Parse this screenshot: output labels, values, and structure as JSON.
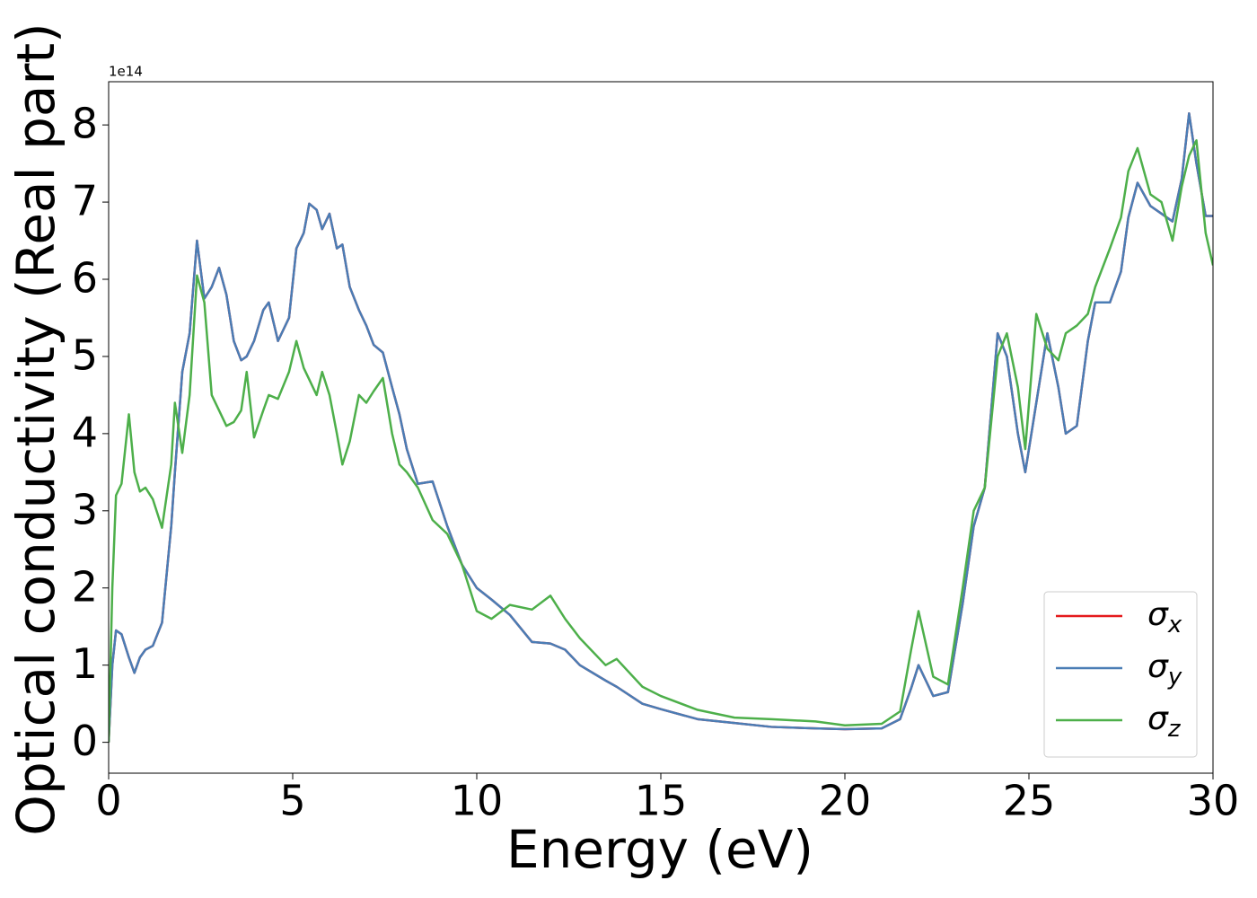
{
  "chart_data": {
    "type": "line",
    "xlabel": "Energy (eV)",
    "ylabel": "Optical conductivity (Real part)",
    "y_offset_label": "1e14",
    "x": [
      0,
      0.1,
      0.2,
      0.35,
      0.55,
      0.7,
      0.85,
      1.0,
      1.2,
      1.45,
      1.7,
      1.8,
      2.0,
      2.2,
      2.4,
      2.6,
      2.8,
      3.0,
      3.2,
      3.4,
      3.6,
      3.75,
      3.95,
      4.2,
      4.35,
      4.6,
      4.9,
      5.1,
      5.3,
      5.45,
      5.65,
      5.8,
      6.0,
      6.2,
      6.35,
      6.55,
      6.8,
      7.0,
      7.2,
      7.45,
      7.7,
      7.9,
      8.1,
      8.4,
      8.8,
      9.2,
      9.6,
      10.0,
      10.4,
      10.9,
      11.5,
      12.0,
      12.4,
      12.8,
      13.5,
      13.8,
      14.5,
      15.0,
      16.0,
      17.0,
      18.0,
      19.2,
      20.0,
      21.0,
      21.5,
      21.8,
      22.0,
      22.4,
      22.8,
      23.2,
      23.5,
      23.8,
      24.15,
      24.4,
      24.7,
      24.9,
      25.2,
      25.5,
      25.8,
      26.0,
      26.3,
      26.6,
      26.8,
      27.2,
      27.5,
      27.7,
      27.95,
      28.3,
      28.6,
      28.9,
      29.15,
      29.35,
      29.55,
      29.8,
      30.0
    ],
    "series": [
      {
        "name": "σx",
        "color": "#e41a1c",
        "values": [
          0,
          1.0,
          1.45,
          1.4,
          1.1,
          0.9,
          1.1,
          1.2,
          1.25,
          1.55,
          2.8,
          3.5,
          4.8,
          5.3,
          6.5,
          5.75,
          5.9,
          6.15,
          5.8,
          5.2,
          4.95,
          5.0,
          5.2,
          5.6,
          5.7,
          5.2,
          5.5,
          6.4,
          6.6,
          6.98,
          6.9,
          6.65,
          6.85,
          6.4,
          6.45,
          5.9,
          5.6,
          5.4,
          5.15,
          5.05,
          4.6,
          4.25,
          3.8,
          3.35,
          3.38,
          2.8,
          2.3,
          2.0,
          1.85,
          1.65,
          1.3,
          1.28,
          1.2,
          1.0,
          0.8,
          0.72,
          0.5,
          0.43,
          0.3,
          0.25,
          0.2,
          0.18,
          0.17,
          0.18,
          0.3,
          0.7,
          1.0,
          0.6,
          0.65,
          1.8,
          2.8,
          3.3,
          5.3,
          5.0,
          4.0,
          3.5,
          4.4,
          5.3,
          4.6,
          4.0,
          4.1,
          5.2,
          5.7,
          5.7,
          6.1,
          6.8,
          7.25,
          6.95,
          6.85,
          6.75,
          7.3,
          8.15,
          7.5,
          6.82,
          6.82
        ]
      },
      {
        "name": "σy",
        "color": "#4a7db5",
        "values": [
          0,
          1.0,
          1.45,
          1.4,
          1.1,
          0.9,
          1.1,
          1.2,
          1.25,
          1.55,
          2.8,
          3.5,
          4.8,
          5.3,
          6.5,
          5.75,
          5.9,
          6.15,
          5.8,
          5.2,
          4.95,
          5.0,
          5.2,
          5.6,
          5.7,
          5.2,
          5.5,
          6.4,
          6.6,
          6.98,
          6.9,
          6.65,
          6.85,
          6.4,
          6.45,
          5.9,
          5.6,
          5.4,
          5.15,
          5.05,
          4.6,
          4.25,
          3.8,
          3.35,
          3.38,
          2.8,
          2.3,
          2.0,
          1.85,
          1.65,
          1.3,
          1.28,
          1.2,
          1.0,
          0.8,
          0.72,
          0.5,
          0.43,
          0.3,
          0.25,
          0.2,
          0.18,
          0.17,
          0.18,
          0.3,
          0.7,
          1.0,
          0.6,
          0.65,
          1.8,
          2.8,
          3.3,
          5.3,
          5.0,
          4.0,
          3.5,
          4.4,
          5.3,
          4.6,
          4.0,
          4.1,
          5.2,
          5.7,
          5.7,
          6.1,
          6.8,
          7.25,
          6.95,
          6.85,
          6.75,
          7.3,
          8.15,
          7.5,
          6.82,
          6.82
        ]
      },
      {
        "name": "σz",
        "color": "#4daf4a",
        "values": [
          0,
          2.0,
          3.2,
          3.35,
          4.25,
          3.5,
          3.25,
          3.3,
          3.15,
          2.78,
          3.6,
          4.4,
          3.75,
          4.5,
          6.05,
          5.7,
          4.5,
          4.3,
          4.1,
          4.15,
          4.3,
          4.8,
          3.95,
          4.3,
          4.5,
          4.45,
          4.8,
          5.2,
          4.85,
          4.7,
          4.5,
          4.8,
          4.5,
          4.0,
          3.6,
          3.9,
          4.5,
          4.4,
          4.55,
          4.72,
          4.0,
          3.6,
          3.5,
          3.3,
          2.88,
          2.7,
          2.3,
          1.7,
          1.6,
          1.78,
          1.72,
          1.9,
          1.6,
          1.35,
          1.0,
          1.08,
          0.72,
          0.6,
          0.42,
          0.32,
          0.3,
          0.27,
          0.22,
          0.24,
          0.4,
          1.2,
          1.7,
          0.85,
          0.75,
          2.0,
          3.0,
          3.3,
          5.0,
          5.3,
          4.6,
          3.8,
          5.55,
          5.1,
          4.95,
          5.3,
          5.4,
          5.55,
          5.9,
          6.4,
          6.8,
          7.4,
          7.7,
          7.1,
          7.0,
          6.5,
          7.2,
          7.6,
          7.8,
          6.6,
          6.18
        ]
      }
    ],
    "xlim": [
      0,
      30
    ],
    "xticks": [
      0,
      5,
      10,
      15,
      20,
      25,
      30
    ],
    "ylim": [
      -0.4,
      8.56
    ],
    "yticks": [
      0,
      1,
      2,
      3,
      4,
      5,
      6,
      7,
      8
    ],
    "grid": false,
    "legend": "lower right"
  }
}
